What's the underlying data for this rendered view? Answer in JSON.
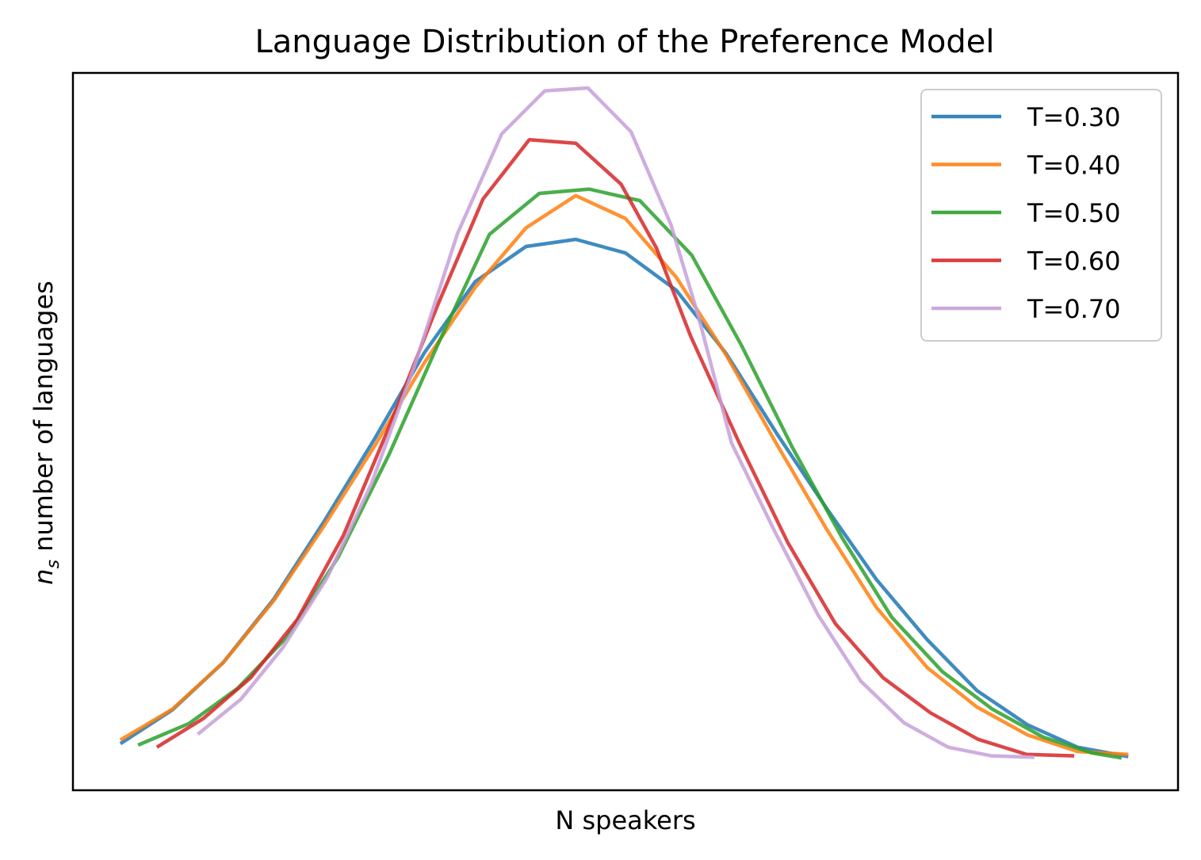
{
  "chart_data": {
    "type": "line",
    "title": "Language Distribution of the Preference Model",
    "xlabel": "N speakers",
    "ylabel_main": "n",
    "ylabel_sub": "s",
    "ylabel_rest": " number of languages",
    "x_ticks_visible": false,
    "y_ticks_visible": false,
    "grid": false,
    "legend_position": "top-right",
    "xlim": [
      0,
      1
    ],
    "ylim": [
      0,
      1
    ],
    "series": [
      {
        "name": "T=0.30",
        "color": "#1f77b4",
        "x": [
          0.043,
          0.09,
          0.136,
          0.182,
          0.227,
          0.273,
          0.318,
          0.364,
          0.41,
          0.455,
          0.5,
          0.546,
          0.591,
          0.637,
          0.682,
          0.727,
          0.773,
          0.818,
          0.864,
          0.909,
          0.955
        ],
        "y": [
          0.065,
          0.112,
          0.178,
          0.267,
          0.374,
          0.49,
          0.61,
          0.709,
          0.758,
          0.768,
          0.749,
          0.697,
          0.609,
          0.497,
          0.393,
          0.294,
          0.21,
          0.139,
          0.091,
          0.06,
          0.047
        ]
      },
      {
        "name": "T=0.40",
        "color": "#ff7f0e",
        "x": [
          0.043,
          0.09,
          0.136,
          0.182,
          0.227,
          0.273,
          0.318,
          0.364,
          0.41,
          0.455,
          0.5,
          0.546,
          0.591,
          0.637,
          0.682,
          0.727,
          0.773,
          0.818,
          0.864,
          0.909,
          0.955
        ],
        "y": [
          0.07,
          0.113,
          0.178,
          0.265,
          0.368,
          0.48,
          0.596,
          0.701,
          0.784,
          0.829,
          0.797,
          0.715,
          0.607,
          0.482,
          0.364,
          0.255,
          0.171,
          0.116,
          0.077,
          0.054,
          0.05
        ]
      },
      {
        "name": "T=0.50",
        "color": "#2ca02c",
        "x": [
          0.059,
          0.105,
          0.149,
          0.194,
          0.24,
          0.286,
          0.331,
          0.377,
          0.422,
          0.467,
          0.513,
          0.56,
          0.605,
          0.651,
          0.696,
          0.741,
          0.787,
          0.832,
          0.878,
          0.922,
          0.949
        ],
        "y": [
          0.063,
          0.093,
          0.142,
          0.214,
          0.325,
          0.468,
          0.624,
          0.775,
          0.832,
          0.838,
          0.822,
          0.746,
          0.62,
          0.478,
          0.352,
          0.241,
          0.165,
          0.113,
          0.074,
          0.052,
          0.045
        ]
      },
      {
        "name": "T=0.60",
        "color": "#d62728",
        "x": [
          0.076,
          0.118,
          0.161,
          0.203,
          0.245,
          0.287,
          0.33,
          0.371,
          0.413,
          0.455,
          0.496,
          0.528,
          0.559,
          0.603,
          0.647,
          0.69,
          0.733,
          0.776,
          0.819,
          0.863,
          0.906
        ],
        "y": [
          0.06,
          0.1,
          0.157,
          0.238,
          0.356,
          0.51,
          0.676,
          0.824,
          0.907,
          0.902,
          0.845,
          0.756,
          0.633,
          0.484,
          0.345,
          0.232,
          0.157,
          0.108,
          0.071,
          0.05,
          0.048
        ]
      },
      {
        "name": "T=0.70",
        "color": "#c5a0d8",
        "x": [
          0.113,
          0.152,
          0.19,
          0.23,
          0.27,
          0.309,
          0.348,
          0.388,
          0.427,
          0.466,
          0.505,
          0.541,
          0.566,
          0.596,
          0.635,
          0.674,
          0.713,
          0.752,
          0.792,
          0.831,
          0.87
        ],
        "y": [
          0.078,
          0.127,
          0.199,
          0.296,
          0.427,
          0.591,
          0.776,
          0.915,
          0.975,
          0.979,
          0.918,
          0.789,
          0.661,
          0.484,
          0.361,
          0.245,
          0.152,
          0.094,
          0.06,
          0.048,
          0.046
        ]
      }
    ]
  }
}
